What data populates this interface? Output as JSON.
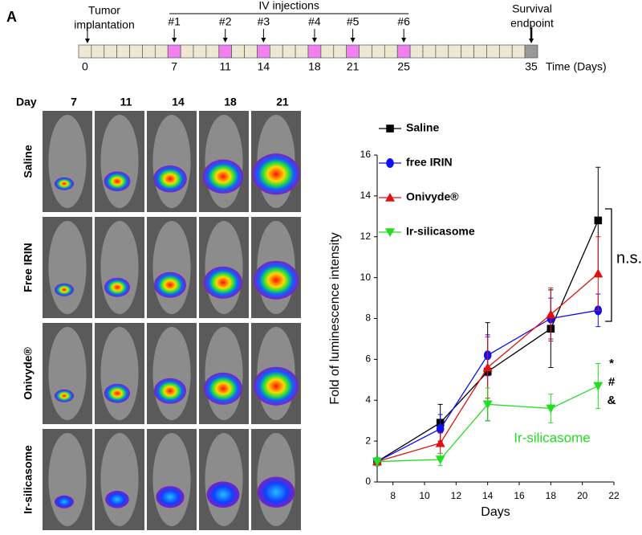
{
  "panel_label": "A",
  "timeline": {
    "start_label": [
      "Tumor",
      "implantation"
    ],
    "injections_title": "IV injections",
    "injections": [
      "#1",
      "#2",
      "#3",
      "#4",
      "#5",
      "#6"
    ],
    "days": [
      0,
      7,
      11,
      14,
      18,
      21,
      25,
      35
    ],
    "axis_label": "Time (Days)",
    "end_label": [
      "Survival",
      "endpoint"
    ]
  },
  "images": {
    "corner_label": "Day",
    "columns": [
      "7",
      "11",
      "14",
      "18",
      "21"
    ],
    "rows": [
      "Saline",
      "Free IRIN",
      "Onivyde®",
      "Ir-silicasome"
    ]
  },
  "chart_data": {
    "type": "line",
    "x_label": "Days",
    "y_label": "Fold of luminescence intensity",
    "x": [
      7,
      11,
      14,
      18,
      21
    ],
    "xlim": [
      7,
      22
    ],
    "xticks": [
      8,
      10,
      12,
      14,
      16,
      18,
      20,
      22
    ],
    "ylim": [
      0,
      16
    ],
    "yticks": [
      0,
      2,
      4,
      6,
      8,
      10,
      12,
      14,
      16
    ],
    "series": [
      {
        "name": "Saline",
        "color": "#000000",
        "marker": "square",
        "values": [
          1.0,
          2.9,
          5.4,
          7.5,
          12.8
        ],
        "errors": [
          0.2,
          0.9,
          2.4,
          1.9,
          2.6
        ]
      },
      {
        "name": "free IRIN",
        "color": "#1010ee",
        "marker": "circle",
        "values": [
          1.0,
          2.6,
          6.2,
          8.0,
          8.4
        ],
        "errors": [
          0.2,
          0.7,
          1.0,
          1.0,
          0.8
        ]
      },
      {
        "name": "Onivyde®",
        "color": "#e01010",
        "marker": "triangle-up",
        "values": [
          1.0,
          1.9,
          5.6,
          8.2,
          10.2
        ],
        "errors": [
          0.2,
          0.5,
          1.5,
          1.3,
          1.8
        ]
      },
      {
        "name": "Ir-silicasome",
        "color": "#22dd22",
        "marker": "triangle-down",
        "values": [
          1.0,
          1.1,
          3.8,
          3.6,
          4.7
        ],
        "errors": [
          0.2,
          0.3,
          0.8,
          0.7,
          1.1
        ]
      }
    ],
    "annotations": {
      "bracket": "n.s.",
      "marks": [
        "*",
        "#",
        "&"
      ],
      "series_label": "Ir-silicasome"
    }
  }
}
